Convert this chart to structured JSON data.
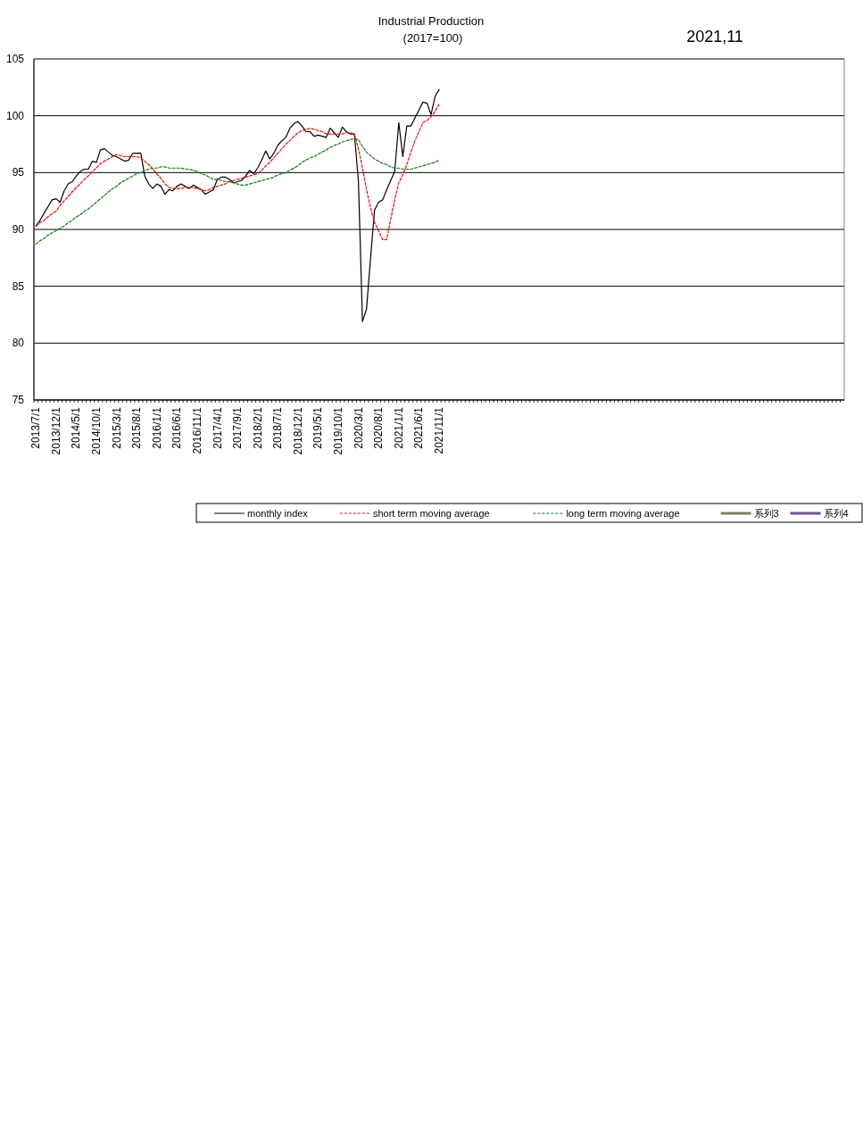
{
  "chart_data": {
    "type": "line",
    "title": "Industrial Production",
    "subtitle": "(2017=100)",
    "annotations": [
      "2021,11"
    ],
    "categories": [
      "2013/7/1",
      null,
      null,
      null,
      null,
      "2013/12/1",
      null,
      null,
      null,
      null,
      "2014/5/1",
      null,
      null,
      null,
      null,
      "2014/10/1",
      null,
      null,
      null,
      null,
      "2015/3/1",
      null,
      null,
      null,
      null,
      "2015/8/1",
      null,
      null,
      null,
      null,
      "2016/1/1",
      null,
      null,
      null,
      null,
      "2016/6/1",
      null,
      null,
      null,
      null,
      "2016/11/1",
      null,
      null,
      null,
      null,
      "2017/4/1",
      null,
      null,
      null,
      null,
      "2017/9/1",
      null,
      null,
      null,
      null,
      "2018/2/1",
      null,
      null,
      null,
      null,
      "2018/7/1",
      null,
      null,
      null,
      null,
      "2018/12/1",
      null,
      null,
      null,
      null,
      "2019/5/1",
      null,
      null,
      null,
      null,
      "2019/10/1",
      null,
      null,
      null,
      null,
      "2020/3/1",
      null,
      null,
      null,
      null,
      "2020/8/1",
      null,
      null,
      null,
      null,
      "2021/1/1",
      null,
      null,
      null,
      null,
      "2021/6/1",
      null,
      null,
      null,
      null,
      "2021/11/1",
      null,
      null,
      null,
      null,
      null,
      null,
      null,
      null,
      null,
      null,
      null,
      null,
      null,
      null,
      null,
      null,
      null,
      null,
      null,
      null,
      null,
      null,
      null,
      null,
      null,
      null,
      null,
      null,
      null,
      null,
      null,
      null,
      null,
      null,
      null,
      null,
      null,
      null,
      null,
      null,
      null,
      null,
      null,
      null,
      null,
      null,
      null,
      null,
      null,
      null,
      null,
      null,
      null,
      null,
      null,
      null,
      null,
      null,
      null,
      null,
      null,
      null,
      null,
      null,
      null,
      null,
      null,
      null,
      null,
      null,
      null,
      null,
      null,
      null,
      null,
      null,
      null,
      null,
      null,
      null,
      null,
      null,
      null,
      null,
      null,
      null,
      null,
      null,
      null,
      null,
      null,
      null,
      null,
      null,
      null,
      null,
      null,
      null,
      null,
      null
    ],
    "ylim": [
      75,
      105
    ],
    "yticks": [
      75,
      80,
      85,
      90,
      95,
      100,
      105
    ],
    "grid": "y",
    "legend": "bottom",
    "series": [
      {
        "name": "monthly index",
        "color": "#000000",
        "line_style": "solid",
        "values": [
          90.3,
          90.8,
          91.4,
          92.0,
          92.6,
          92.7,
          92.4,
          93.4,
          94.0,
          94.2,
          94.7,
          95.1,
          95.3,
          95.3,
          96.0,
          95.9,
          97.0,
          97.1,
          96.8,
          96.5,
          96.4,
          96.2,
          96.0,
          96.1,
          96.7,
          96.7,
          96.7,
          94.7,
          94.0,
          93.6,
          94.0,
          93.8,
          93.1,
          93.5,
          93.4,
          93.8,
          94.0,
          93.8,
          93.6,
          93.9,
          93.7,
          93.5,
          93.1,
          93.3,
          93.5,
          94.4,
          94.6,
          94.6,
          94.4,
          94.1,
          94.2,
          94.3,
          94.7,
          95.2,
          94.9,
          95.4,
          96.1,
          96.9,
          96.2,
          96.7,
          97.4,
          97.8,
          98.1,
          98.9,
          99.3,
          99.5,
          99.1,
          98.6,
          98.6,
          98.2,
          98.3,
          98.2,
          98.1,
          98.9,
          98.5,
          98.1,
          99.0,
          98.6,
          98.4,
          98.4,
          94.2,
          81.9,
          83.0,
          87.5,
          91.7,
          92.4,
          92.6,
          93.5,
          94.3,
          95.1,
          99.4,
          96.4,
          99.1,
          99.1,
          99.8,
          100.5,
          101.2,
          101.1,
          100.1,
          101.7,
          102.3,
          null,
          null,
          null,
          null,
          null,
          null,
          null,
          null,
          null,
          null,
          null,
          null,
          null,
          null,
          null,
          null,
          null,
          null,
          null,
          null,
          null,
          null,
          null,
          null,
          null,
          null,
          null,
          null,
          null,
          null,
          null,
          null,
          null,
          null,
          null,
          null,
          null,
          null,
          null,
          null,
          null,
          null,
          null,
          null,
          null,
          null,
          null,
          null,
          null,
          null,
          null,
          null,
          null,
          null,
          null,
          null,
          null,
          null,
          null,
          null,
          null,
          null,
          null,
          null,
          null,
          null,
          null,
          null,
          null,
          null,
          null,
          null,
          null,
          null,
          null,
          null,
          null,
          null,
          null,
          null,
          null,
          null,
          null,
          null,
          null,
          null,
          null,
          null,
          null,
          null,
          null,
          null,
          null,
          null,
          null,
          null,
          null,
          null,
          null,
          null
        ]
      },
      {
        "name": "short term moving average",
        "color": "#ff0000",
        "line_style": "dashed",
        "values": [
          90.3,
          90.6,
          90.8,
          91.1,
          91.4,
          91.6,
          92.1,
          92.5,
          92.9,
          93.3,
          93.7,
          94.0,
          94.4,
          94.7,
          95.1,
          95.4,
          95.8,
          96.0,
          96.2,
          96.4,
          96.6,
          96.5,
          96.4,
          96.4,
          96.4,
          96.4,
          96.3,
          96.0,
          95.7,
          95.3,
          94.9,
          94.5,
          94.0,
          93.7,
          93.6,
          93.6,
          93.6,
          93.7,
          93.7,
          93.7,
          93.6,
          93.5,
          93.4,
          93.5,
          93.7,
          93.8,
          93.9,
          94.0,
          94.2,
          94.3,
          94.4,
          94.5,
          94.6,
          94.7,
          94.8,
          94.9,
          95.2,
          95.6,
          95.9,
          96.3,
          96.7,
          97.1,
          97.5,
          97.8,
          98.2,
          98.5,
          98.7,
          98.8,
          98.9,
          98.8,
          98.7,
          98.6,
          98.4,
          98.4,
          98.4,
          98.4,
          98.4,
          98.5,
          98.5,
          98.4,
          97.1,
          95.4,
          93.5,
          91.9,
          90.6,
          89.9,
          89.1,
          89.1,
          90.9,
          92.6,
          94.1,
          94.8,
          95.7,
          96.8,
          97.8,
          98.6,
          99.4,
          99.6,
          99.9,
          100.4,
          101.0,
          null,
          null,
          null,
          null,
          null,
          null,
          null,
          null,
          null,
          null,
          null,
          null,
          null,
          null,
          null,
          null,
          null,
          null,
          null,
          null,
          null,
          null,
          null,
          null,
          null,
          null,
          null,
          null,
          null,
          null,
          null,
          null,
          null,
          null,
          null,
          null,
          null,
          null,
          null,
          null,
          null,
          null,
          null,
          null,
          null,
          null,
          null,
          null,
          null,
          null,
          null,
          null,
          null,
          null,
          null,
          null,
          null,
          null,
          null,
          null,
          null,
          null,
          null,
          null,
          null,
          null,
          null,
          null,
          null,
          null,
          null,
          null,
          null,
          null,
          null,
          null,
          null,
          null,
          null,
          null,
          null,
          null,
          null,
          null,
          null,
          null,
          null,
          null,
          null,
          null,
          null,
          null,
          null,
          null,
          null,
          null,
          null,
          null,
          null,
          null
        ]
      },
      {
        "name": "long term moving average",
        "color": "#008000",
        "line_style": "dashed",
        "values": [
          88.7,
          89.0,
          89.2,
          89.5,
          89.7,
          89.9,
          90.1,
          90.3,
          90.6,
          90.8,
          91.1,
          91.3,
          91.6,
          91.8,
          92.1,
          92.4,
          92.7,
          93.0,
          93.3,
          93.6,
          93.8,
          94.1,
          94.3,
          94.5,
          94.7,
          94.9,
          95.0,
          95.2,
          95.3,
          95.4,
          95.4,
          95.5,
          95.5,
          95.4,
          95.4,
          95.4,
          95.4,
          95.3,
          95.3,
          95.2,
          95.1,
          94.9,
          94.8,
          94.6,
          94.4,
          94.4,
          94.3,
          94.2,
          94.2,
          94.1,
          94.0,
          93.9,
          93.9,
          94.0,
          94.1,
          94.2,
          94.3,
          94.4,
          94.5,
          94.6,
          94.8,
          94.9,
          95.0,
          95.2,
          95.4,
          95.6,
          95.9,
          96.1,
          96.3,
          96.4,
          96.6,
          96.8,
          97.0,
          97.2,
          97.4,
          97.5,
          97.7,
          97.8,
          97.9,
          98.0,
          97.9,
          97.3,
          96.8,
          96.5,
          96.2,
          96.0,
          95.8,
          95.7,
          95.5,
          95.4,
          95.4,
          95.3,
          95.3,
          95.3,
          95.4,
          95.5,
          95.6,
          95.7,
          95.8,
          95.9,
          96.1,
          null,
          null,
          null,
          null,
          null,
          null,
          null,
          null,
          null,
          null,
          null,
          null,
          null,
          null,
          null,
          null,
          null,
          null,
          null,
          null,
          null,
          null,
          null,
          null,
          null,
          null,
          null,
          null,
          null,
          null,
          null,
          null,
          null,
          null,
          null,
          null,
          null,
          null,
          null,
          null,
          null,
          null,
          null,
          null,
          null,
          null,
          null,
          null,
          null,
          null,
          null,
          null,
          null,
          null,
          null,
          null,
          null,
          null,
          null,
          null,
          null,
          null,
          null,
          null,
          null,
          null,
          null,
          null,
          null,
          null,
          null,
          null,
          null,
          null,
          null,
          null,
          null,
          null,
          null,
          null,
          null,
          null,
          null,
          null,
          null,
          null,
          null,
          null,
          null,
          null,
          null,
          null,
          null,
          null,
          null,
          null,
          null,
          null,
          null,
          null
        ]
      },
      {
        "name": "系列3",
        "color": "#808060",
        "line_style": "solid",
        "values": [
          null,
          null,
          null,
          null,
          null,
          null,
          null,
          null,
          null,
          null,
          null,
          null,
          null,
          null,
          null,
          null,
          null,
          null,
          null,
          null,
          null,
          null,
          null,
          null,
          null,
          null,
          null,
          null,
          null,
          null,
          null,
          null,
          null,
          null,
          null,
          null,
          null,
          null,
          null,
          null,
          null,
          null,
          null,
          null,
          null,
          null,
          null,
          null,
          null,
          null,
          null,
          null,
          null,
          null,
          null,
          null,
          null,
          null,
          null,
          null,
          null,
          null,
          null,
          null,
          null,
          null,
          null,
          null,
          null,
          null,
          null,
          null,
          null,
          null,
          null,
          null,
          null,
          null,
          null,
          null,
          null,
          null,
          null,
          null,
          null,
          null,
          null,
          null,
          null,
          null,
          null,
          null,
          null,
          null,
          null,
          null,
          null,
          null,
          null,
          null,
          null,
          null,
          null,
          null,
          null,
          null,
          null,
          null,
          null,
          null,
          null,
          null,
          null,
          null,
          null,
          null,
          null,
          null,
          null,
          null,
          null,
          null,
          null,
          null,
          null,
          null,
          null,
          null,
          null,
          null,
          null,
          null,
          null,
          null,
          null,
          null,
          null,
          null,
          null,
          null,
          null,
          null,
          null,
          null,
          null,
          null,
          null,
          null,
          null,
          null,
          null,
          null,
          null,
          null,
          null,
          null,
          null,
          null,
          null,
          null,
          null,
          null,
          null,
          null,
          null,
          null,
          null,
          null,
          null,
          null,
          null,
          null,
          null,
          null,
          null,
          null,
          null,
          null,
          null,
          null,
          null,
          null,
          null,
          null,
          null,
          null,
          null,
          null,
          null,
          null,
          null,
          null,
          null,
          null,
          null,
          null,
          null,
          null,
          null,
          null,
          null
        ]
      },
      {
        "name": "系列4",
        "color": "#7050a0",
        "line_style": "solid",
        "values": [
          null,
          null,
          null,
          null,
          null,
          null,
          null,
          null,
          null,
          null,
          null,
          null,
          null,
          null,
          null,
          null,
          null,
          null,
          null,
          null,
          null,
          null,
          null,
          null,
          null,
          null,
          null,
          null,
          null,
          null,
          null,
          null,
          null,
          null,
          null,
          null,
          null,
          null,
          null,
          null,
          null,
          null,
          null,
          null,
          null,
          null,
          null,
          null,
          null,
          null,
          null,
          null,
          null,
          null,
          null,
          null,
          null,
          null,
          null,
          null,
          null,
          null,
          null,
          null,
          null,
          null,
          null,
          null,
          null,
          null,
          null,
          null,
          null,
          null,
          null,
          null,
          null,
          null,
          null,
          null,
          null,
          null,
          null,
          null,
          null,
          null,
          null,
          null,
          null,
          null,
          null,
          null,
          null,
          null,
          null,
          null,
          null,
          null,
          null,
          null,
          null,
          null,
          null,
          null,
          null,
          null,
          null,
          null,
          null,
          null,
          null,
          null,
          null,
          null,
          null,
          null,
          null,
          null,
          null,
          null,
          null,
          null,
          null,
          null,
          null,
          null,
          null,
          null,
          null,
          null,
          null,
          null,
          null,
          null,
          null,
          null,
          null,
          null,
          null,
          null,
          null,
          null,
          null,
          null,
          null,
          null,
          null,
          null,
          null,
          null,
          null,
          null,
          null,
          null,
          null,
          null,
          null,
          null,
          null,
          null,
          null,
          null,
          null,
          null,
          null,
          null,
          null,
          null,
          null,
          null,
          null,
          null,
          null,
          null,
          null,
          null,
          null,
          null,
          null,
          null,
          null,
          null,
          null,
          null,
          null,
          null,
          null,
          null,
          null,
          null,
          null,
          null,
          null,
          null,
          null,
          null,
          null,
          null,
          null,
          null,
          null
        ]
      }
    ]
  }
}
